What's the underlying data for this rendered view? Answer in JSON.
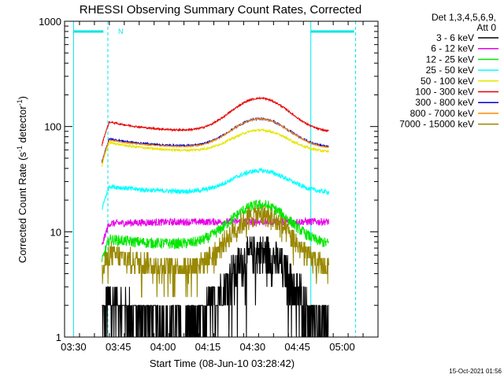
{
  "chart_data": {
    "type": "line",
    "title": "RHESSI Observing Summary Count Rates, Corrected",
    "xlabel": "Start Time (08-Jun-10 03:28:42)",
    "ylabel_main": "Corrected Count Rate (s",
    "ylabel_sup1": "-1",
    "ylabel_mid": " detector",
    "ylabel_sup2": "-1",
    "ylabel_end": ")",
    "y_scale": "log",
    "ylim": [
      1,
      1000
    ],
    "xlim": [
      "03:27",
      "05:12"
    ],
    "x_ticks": [
      {
        "t": "03:30",
        "m": 210
      },
      {
        "t": "03:45",
        "m": 225
      },
      {
        "t": "04:00",
        "m": 240
      },
      {
        "t": "04:15",
        "m": 255
      },
      {
        "t": "04:30",
        "m": 270
      },
      {
        "t": "04:45",
        "m": 285
      },
      {
        "t": "05:00",
        "m": 300
      }
    ],
    "y_ticks": [
      {
        "v": 1,
        "label": "1"
      },
      {
        "v": 10,
        "label": "10"
      },
      {
        "v": 100,
        "label": "100"
      },
      {
        "v": 1000,
        "label": "1000"
      }
    ],
    "legend_header": [
      "Det 1,3,4,5,6,9,",
      "Att 0"
    ],
    "legend_position": "right",
    "series": [
      {
        "name": "3 - 6 keV",
        "color": "#000000",
        "start": 2.3,
        "floor": 1.1,
        "peak": 6.5,
        "noise": 0.45,
        "step": true
      },
      {
        "name": "6 - 12 keV",
        "color": "#e600e6",
        "start": 12,
        "floor": 12.5,
        "peak": 12.5,
        "noise": 0.08
      },
      {
        "name": "12 - 25 keV",
        "color": "#00e600",
        "start": 8.5,
        "floor": 7.5,
        "peak": 18,
        "noise": 0.12
      },
      {
        "name": "25 - 50 keV",
        "color": "#00ffff",
        "start": 27,
        "floor": 23.5,
        "peak": 38,
        "noise": 0.05
      },
      {
        "name": "50 - 100 keV",
        "color": "#e6e600",
        "start": 70,
        "floor": 57,
        "peak": 92,
        "noise": 0.025
      },
      {
        "name": "100 - 300 keV",
        "color": "#e60000",
        "start": 110,
        "floor": 88,
        "peak": 185,
        "noise": 0.02
      },
      {
        "name": "300 - 800 keV",
        "color": "#0000cc",
        "start": 76,
        "floor": 63,
        "peak": 118,
        "noise": 0.02
      },
      {
        "name": "800 - 7000 keV",
        "color": "#ff8c00",
        "start": 74,
        "floor": 62,
        "peak": 118,
        "noise": 0.012
      },
      {
        "name": "7000 - 15000 keV",
        "color": "#998800",
        "start": 6.3,
        "floor": 4.3,
        "peak": 14.5,
        "noise": 0.25,
        "step": true
      }
    ],
    "data_window": {
      "start_min": 219.5,
      "end_min": 295.5,
      "peak_min": 272.5
    },
    "attenuator_bars": [
      {
        "from_min": 210,
        "to_min": 220,
        "value": 800
      },
      {
        "from_min": 289.5,
        "to_min": 304,
        "value": 800
      }
    ],
    "cyan_vlines_solid": [
      210,
      289.5
    ],
    "cyan_vlines_dashed": [
      221.5,
      304.5
    ],
    "marker_label": "N",
    "timestamp": "15-Oct-2021 01:56"
  }
}
